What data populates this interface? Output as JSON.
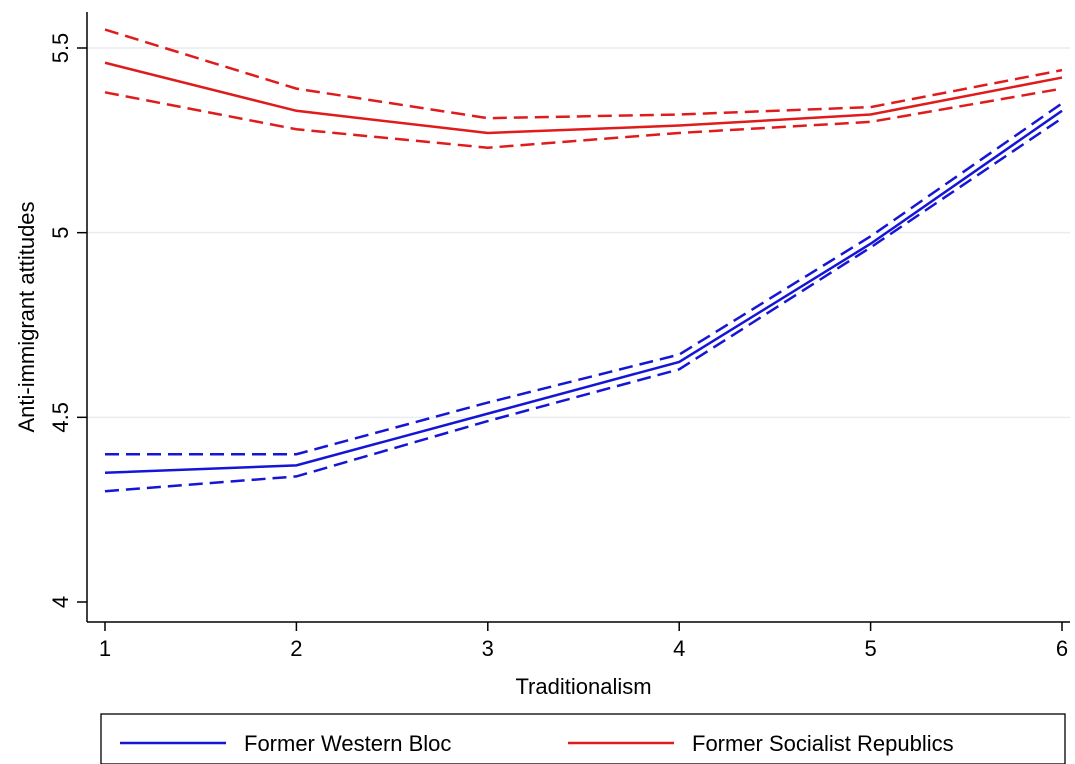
{
  "chart_data": {
    "type": "line",
    "title": "",
    "xlabel": "Traditionalism",
    "ylabel": "Anti-immigrant attitudes",
    "x": [
      1,
      2,
      3,
      4,
      5,
      6
    ],
    "xlim": [
      1,
      6
    ],
    "ylim": [
      3.95,
      5.57
    ],
    "xticks": [
      "1",
      "2",
      "3",
      "4",
      "5",
      "6"
    ],
    "xtick_values": [
      1,
      2,
      3,
      4,
      5,
      6
    ],
    "yticks": [
      "4",
      "4.5",
      "5",
      "5.5"
    ],
    "ytick_values": [
      4,
      4.5,
      5,
      5.5
    ],
    "grid": "horizontal",
    "legend_position": "bottom",
    "series": [
      {
        "name": "Former Western Bloc",
        "color": "#1515d6",
        "values": [
          4.35,
          4.37,
          4.51,
          4.65,
          4.97,
          5.33
        ],
        "upper": [
          4.4,
          4.4,
          4.54,
          4.67,
          4.99,
          5.35
        ],
        "lower": [
          4.3,
          4.34,
          4.49,
          4.63,
          4.96,
          5.31
        ]
      },
      {
        "name": "Former Socialist Republics",
        "color": "#e01b1b",
        "values": [
          5.46,
          5.33,
          5.27,
          5.29,
          5.32,
          5.42
        ],
        "upper": [
          5.55,
          5.39,
          5.31,
          5.32,
          5.34,
          5.44
        ],
        "lower": [
          5.38,
          5.28,
          5.23,
          5.27,
          5.3,
          5.39
        ]
      }
    ]
  }
}
